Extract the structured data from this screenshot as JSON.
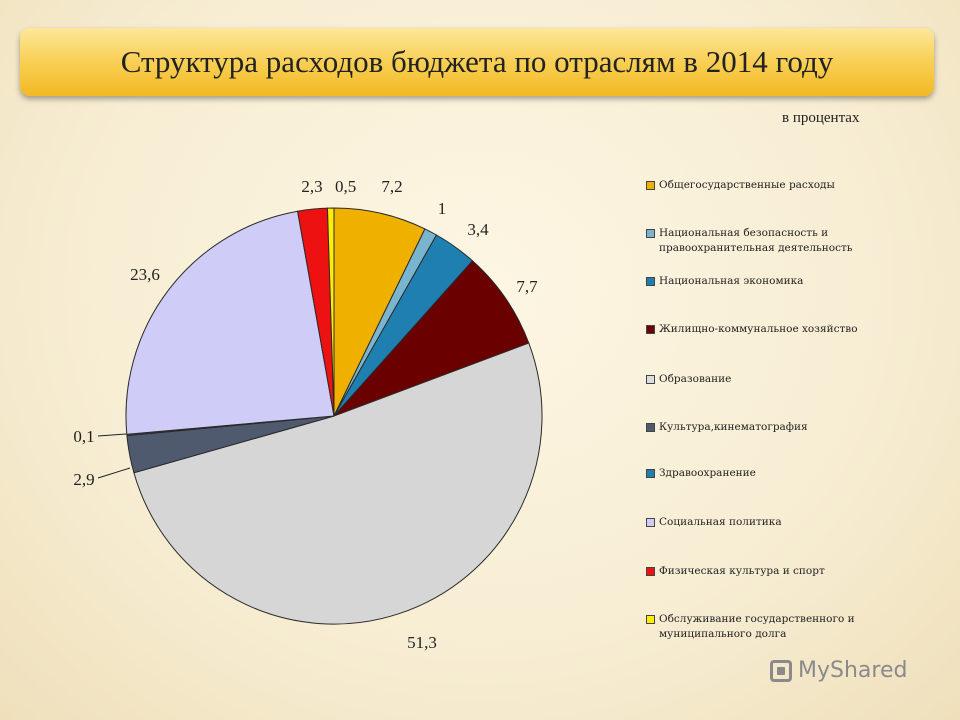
{
  "title": "Структура расходов бюджета по отраслям в 2014 году",
  "units_note": "в процентах",
  "watermark": "MyShared",
  "chart_data": {
    "type": "pie",
    "start_angle_deg": 0,
    "direction": "clockwise",
    "labels": [
      "Общегосударственные расходы",
      "Национальная безопасность и правоохранительная деятельность",
      "Национальная экономика",
      "Жилищно-коммунальное хозяйство",
      "Образование",
      "Культура,кинематография",
      "Здравоохранение",
      "Социальная политика",
      "Физическая культура и спорт",
      "Обслуживание государственного и муниципального долга"
    ],
    "values": [
      7.2,
      1,
      3.4,
      7.7,
      51.3,
      2.9,
      0.1,
      23.6,
      2.3,
      0.5
    ],
    "value_labels": [
      "7,2",
      "1",
      "3,4",
      "7,7",
      "51,3",
      "2,9",
      "0,1",
      "23,6",
      "2,3",
      "0,5"
    ],
    "colors": [
      "#f0b000",
      "#7ab5cf",
      "#1f7fb0",
      "#6b0000",
      "#d6d6d6",
      "#505a6e",
      "#2070a8",
      "#cfcdf8",
      "#ee1111",
      "#ffee00"
    ],
    "legend_colors": [
      "#f0b000",
      "#7ab5cf",
      "#1f7fb0",
      "#6b0000",
      "#dcdcdc",
      "#505a6e",
      "#1f7fb0",
      "#cfcdf8",
      "#ee1111",
      "#ffee00"
    ],
    "legend_position": "right"
  }
}
